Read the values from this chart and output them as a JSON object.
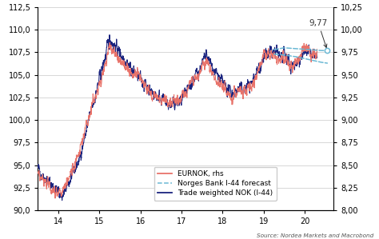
{
  "title": "",
  "source_text": "Source: Nordea Markets and Macrobond",
  "left_ylim": [
    90.0,
    112.5
  ],
  "left_yticks": [
    90.0,
    92.5,
    95.0,
    97.5,
    100.0,
    102.5,
    105.0,
    107.5,
    110.0,
    112.5
  ],
  "right_ylim": [
    8.0,
    10.25
  ],
  "right_yticks": [
    8.0,
    8.25,
    8.5,
    8.75,
    9.0,
    9.25,
    9.5,
    9.75,
    10.0,
    10.25
  ],
  "xtick_labels": [
    "14",
    "15",
    "16",
    "17",
    "18",
    "19",
    "20"
  ],
  "annotation_label": "9,77",
  "eurnok_color": "#E8736A",
  "forecast_color": "#6BB8D4",
  "trade_color": "#1A237E",
  "bg_color": "#FFFFFF",
  "grid_color": "#C8C8C8",
  "legend_items": [
    "EURNOK, rhs",
    "Norges Bank I-44 forecast",
    "Trade weighted NOK (I-44)"
  ]
}
